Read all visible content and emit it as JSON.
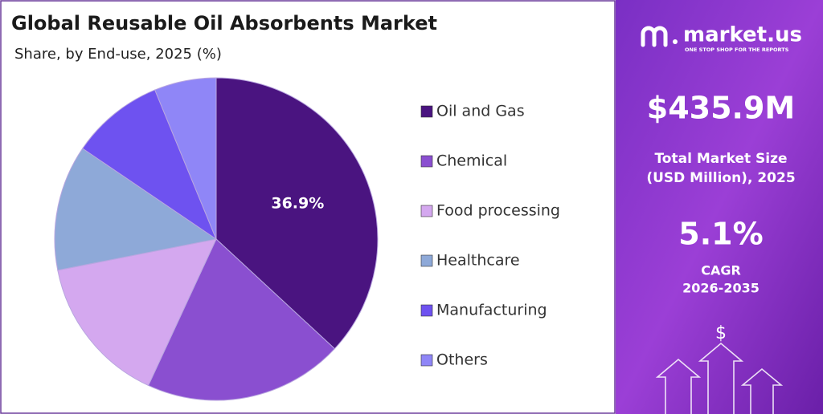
{
  "chart_data": {
    "type": "pie",
    "title": "Global Reusable Oil Absorbents Market",
    "subtitle": "Share, by End-use, 2025 (%)",
    "categories": [
      "Oil and Gas",
      "Chemical",
      "Food processing",
      "Healthcare",
      "Manufacturing",
      "Others"
    ],
    "values": [
      36.9,
      20.0,
      15.0,
      12.6,
      9.3,
      6.2
    ],
    "value_labels": [
      "36.9%",
      null,
      null,
      null,
      null,
      null
    ],
    "colors": [
      "#4a1480",
      "#8a4fd0",
      "#d4a8ef",
      "#8ea9d8",
      "#6e52f0",
      "#8f86f7"
    ],
    "legend": "right"
  },
  "panel": {
    "brand": "market.us",
    "tagline": "ONE STOP SHOP FOR THE REPORTS",
    "market_size": "$435.9M",
    "market_size_label": [
      "Total Market Size",
      "(USD Million), 2025"
    ],
    "cagr": "5.1%",
    "cagr_label": [
      "CAGR",
      "2026-2035"
    ],
    "icon_symbol": "$"
  }
}
